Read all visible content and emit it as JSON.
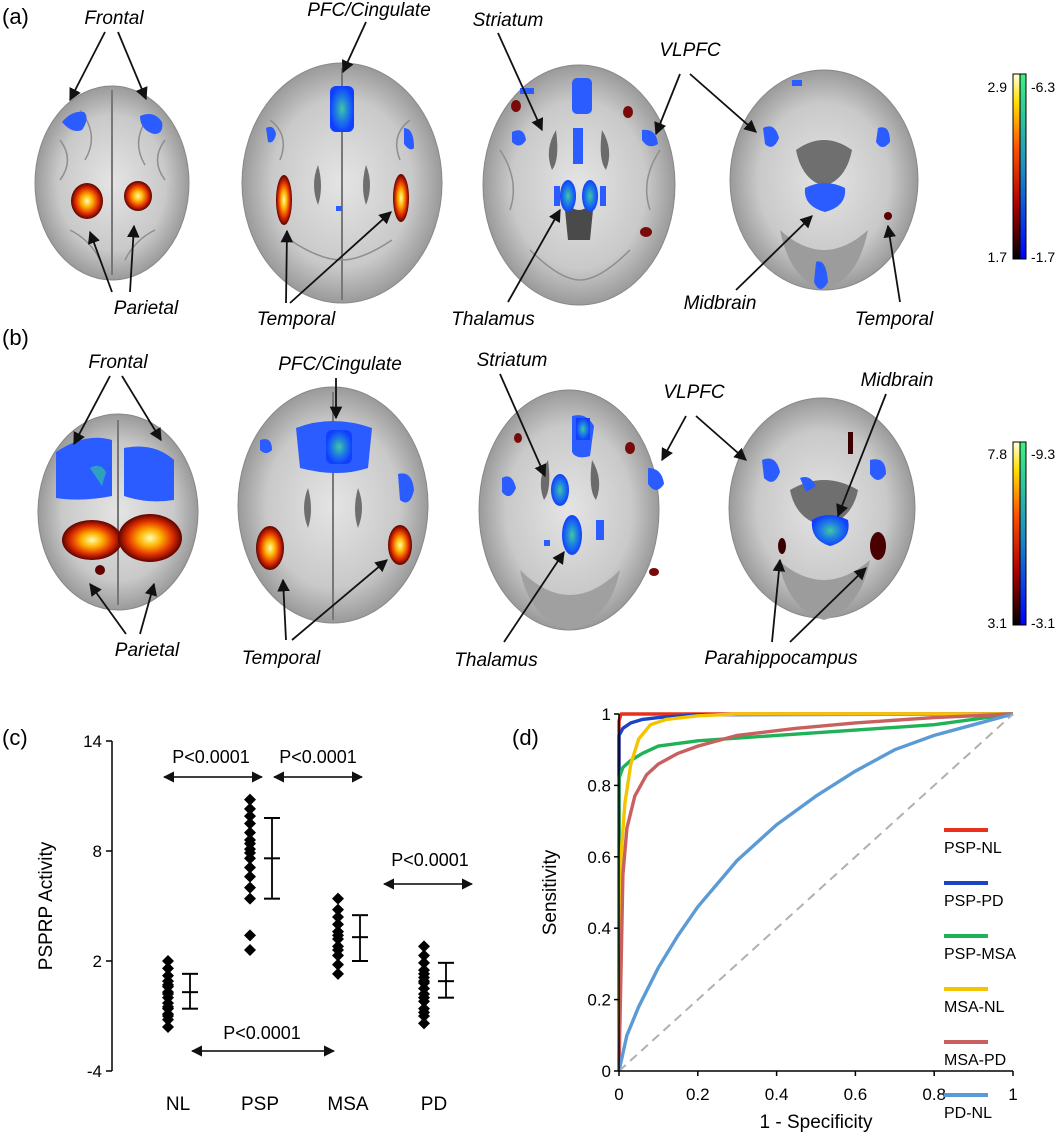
{
  "panel_labels": [
    "(a)",
    "(b)",
    "(c)",
    "(d)"
  ],
  "brain_annotations": {
    "a": {
      "frontal": "Frontal",
      "parietal": "Parietal",
      "pfc_cingulate": "PFC/Cingulate",
      "temporal_2": "Temporal",
      "striatum": "Striatum",
      "thalamus": "Thalamus",
      "vlpfc": "VLPFC",
      "midbrain": "Midbrain",
      "temporal_4": "Temporal"
    },
    "b": {
      "frontal": "Frontal",
      "parietal": "Parietal",
      "pfc_cingulate": "PFC/Cingulate",
      "temporal_2": "Temporal",
      "striatum": "Striatum",
      "thalamus": "Thalamus",
      "vlpfc": "VLPFC",
      "midbrain": "Midbrain",
      "parahippocampus": "Parahippocampus"
    }
  },
  "colorbars": {
    "a": {
      "pos_top": "2.9",
      "pos_bottom": "1.7",
      "neg_top": "-6.3",
      "neg_bottom": "-1.7"
    },
    "b": {
      "pos_top": "7.8",
      "pos_bottom": "3.1",
      "neg_top": "-9.3",
      "neg_bottom": "-3.1"
    }
  },
  "colors": {
    "hot": [
      "#1a0000",
      "#8b0000",
      "#d42a00",
      "#ff8c00",
      "#ffd800",
      "#ffffc8"
    ],
    "cool": [
      "#0000ff",
      "#1060ff",
      "#20a0c0",
      "#30d090",
      "#a0ffa0"
    ],
    "brain_gray": "#c8c8c8"
  },
  "chart_data": [
    {
      "type": "scatter",
      "panel": "(c)",
      "title": "",
      "xlabel": "",
      "ylabel": "PSPRP Activity",
      "categories": [
        "NL",
        "PSP",
        "MSA",
        "PD"
      ],
      "ylim": [
        -4,
        14
      ],
      "yticks": [
        "-4",
        "2",
        "8",
        "14"
      ],
      "series": [
        {
          "values": [
            -1.6,
            -1.2,
            -0.9,
            -0.6,
            -0.3,
            0.0,
            0.3,
            0.6,
            0.9,
            1.2,
            1.6,
            2.0,
            -1.0,
            -0.5,
            0.2,
            0.7
          ]
        },
        {
          "values": [
            2.6,
            3.4,
            5.4,
            6.0,
            6.6,
            7.1,
            7.6,
            8.1,
            8.6,
            9.0,
            9.5,
            9.9,
            10.3,
            10.8,
            7.9,
            8.4
          ]
        },
        {
          "values": [
            1.3,
            1.8,
            2.3,
            2.8,
            3.2,
            3.6,
            4.0,
            4.4,
            4.8,
            5.4,
            2.6,
            3.4
          ]
        },
        {
          "values": [
            -1.4,
            -1.0,
            -0.6,
            -0.2,
            0.2,
            0.5,
            0.8,
            1.1,
            1.5,
            1.9,
            2.3,
            2.8,
            0.0,
            0.9,
            1.3,
            -0.8
          ]
        }
      ],
      "summary": [
        {
          "mean": 0.3,
          "upper": 1.3,
          "lower": -0.6
        },
        {
          "mean": 7.6,
          "upper": 9.8,
          "lower": 5.4
        },
        {
          "mean": 3.3,
          "upper": 4.5,
          "lower": 2.0
        },
        {
          "mean": 0.9,
          "upper": 1.9,
          "lower": 0.0
        }
      ],
      "annotations": [
        {
          "text": "P<0.0001",
          "from": "NL",
          "to": "PSP"
        },
        {
          "text": "P<0.0001",
          "from": "PSP",
          "to": "MSA"
        },
        {
          "text": "P<0.0001",
          "from": "MSA",
          "to": "PD"
        },
        {
          "text": "P<0.0001",
          "from": "NL",
          "to": "MSA"
        }
      ],
      "grid": false
    },
    {
      "type": "line",
      "panel": "(d)",
      "title": "",
      "xlabel": "1 - Specificity",
      "ylabel": "Sensitivity",
      "xlim": [
        0,
        1
      ],
      "ylim": [
        0,
        1
      ],
      "xticks": [
        "0",
        "0.2",
        "0.4",
        "0.6",
        "0.8",
        "1"
      ],
      "yticks": [
        "0",
        "0.2",
        "0.4",
        "0.6",
        "0.8",
        "1"
      ],
      "legend_position": "right",
      "grid": false,
      "series": [
        {
          "name": "PSP-NL",
          "color": "#e8301c",
          "x": [
            0,
            0.0,
            0.005,
            1
          ],
          "y": [
            0,
            0.98,
            1,
            1
          ]
        },
        {
          "name": "PSP-PD",
          "color": "#1a44c4",
          "x": [
            0,
            0.0,
            0.01,
            0.03,
            0.06,
            0.1,
            0.2,
            1
          ],
          "y": [
            0,
            0.94,
            0.96,
            0.975,
            0.985,
            0.99,
            0.998,
            1
          ]
        },
        {
          "name": "PSP-MSA",
          "color": "#1fb257",
          "x": [
            0,
            0.0,
            0.01,
            0.03,
            0.06,
            0.1,
            0.2,
            0.4,
            0.6,
            0.8,
            1
          ],
          "y": [
            0,
            0.82,
            0.85,
            0.87,
            0.89,
            0.91,
            0.925,
            0.94,
            0.955,
            0.97,
            1
          ]
        },
        {
          "name": "MSA-NL",
          "color": "#f5c400",
          "x": [
            0,
            0.005,
            0.015,
            0.03,
            0.05,
            0.08,
            0.12,
            0.2,
            0.3,
            1
          ],
          "y": [
            0,
            0.6,
            0.75,
            0.86,
            0.93,
            0.97,
            0.985,
            0.995,
            1,
            1
          ]
        },
        {
          "name": "MSA-PD",
          "color": "#c86060",
          "x": [
            0,
            0.01,
            0.02,
            0.04,
            0.07,
            0.1,
            0.15,
            0.2,
            0.3,
            0.45,
            0.6,
            0.8,
            1
          ],
          "y": [
            0,
            0.55,
            0.68,
            0.77,
            0.83,
            0.86,
            0.89,
            0.91,
            0.94,
            0.96,
            0.975,
            0.99,
            1
          ]
        },
        {
          "name": "PD-NL",
          "color": "#5b9bd5",
          "x": [
            0,
            0.02,
            0.05,
            0.1,
            0.15,
            0.2,
            0.3,
            0.4,
            0.5,
            0.6,
            0.7,
            0.8,
            0.9,
            1
          ],
          "y": [
            0,
            0.1,
            0.18,
            0.29,
            0.38,
            0.46,
            0.59,
            0.69,
            0.77,
            0.84,
            0.9,
            0.94,
            0.97,
            1
          ]
        },
        {
          "name": "",
          "color": "#b0b0b0",
          "dashed": true,
          "x": [
            0,
            1
          ],
          "y": [
            0,
            1
          ]
        }
      ]
    }
  ]
}
